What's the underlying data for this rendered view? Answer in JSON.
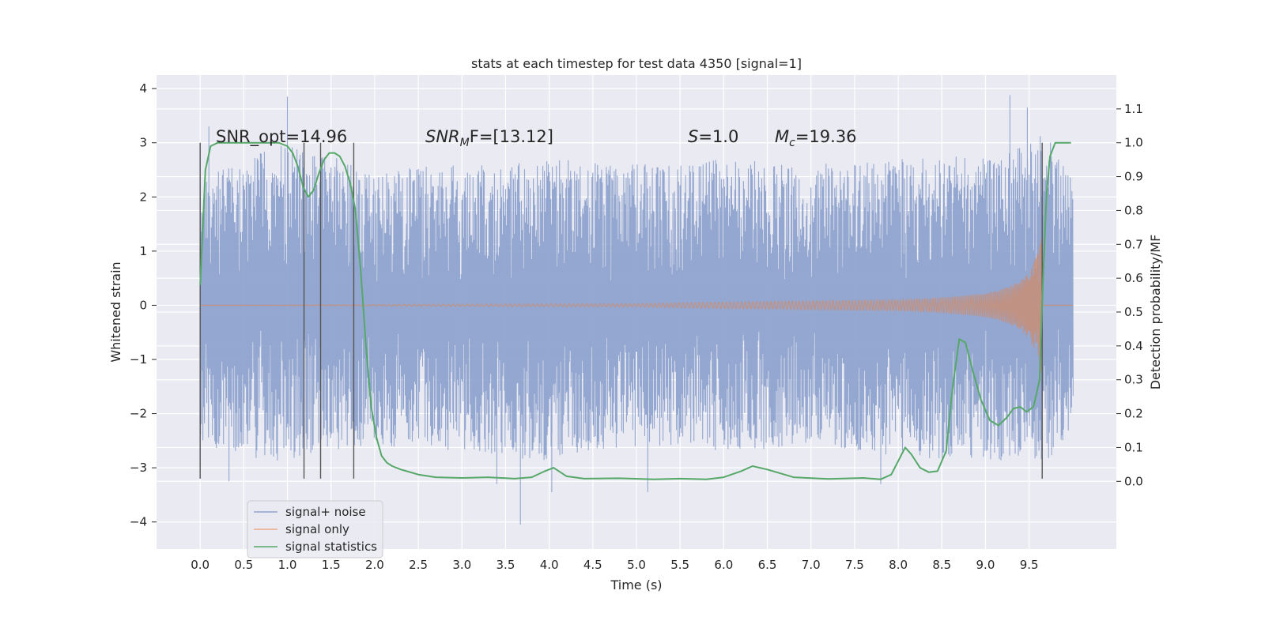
{
  "chart_data": {
    "type": "line",
    "title": "stats at each timestep for test data 4350 [signal=1]",
    "xlabel": "Time (s)",
    "ylabel_left": "Whitened strain",
    "ylabel_right": "Detection probability/MF",
    "xlim": [
      -0.5,
      10.5
    ],
    "ylim_left": [
      -4.5,
      4.25
    ],
    "ylim_right": [
      -0.2,
      1.2
    ],
    "x_ticks": [
      "0.0",
      "0.5",
      "1.0",
      "1.5",
      "2.0",
      "2.5",
      "3.0",
      "3.5",
      "4.0",
      "4.5",
      "5.0",
      "5.5",
      "6.0",
      "6.5",
      "7.0",
      "7.5",
      "8.0",
      "8.5",
      "9.0",
      "9.5"
    ],
    "y_ticks_left": [
      "4",
      "3",
      "2",
      "1",
      "0",
      "−1",
      "−2",
      "−3",
      "−4"
    ],
    "y_ticks_right": [
      "1.1",
      "1.0",
      "0.9",
      "0.8",
      "0.7",
      "0.6",
      "0.5",
      "0.4",
      "0.3",
      "0.2",
      "0.1",
      "0.0"
    ],
    "grid": true,
    "legend_position": "lower-left",
    "annotations": {
      "snr_opt": "SNR_opt=14.96",
      "snr_mf_prefix": "SNR",
      "snr_mf_sub": "M",
      "snr_mf_rest": "F=[13.12]",
      "s_prefix": "S",
      "s_rest": "=1.0",
      "mc_prefix": "M",
      "mc_sub": "c",
      "mc_rest": "=19.36"
    },
    "vertical_markers": [
      0.0,
      1.19,
      1.38,
      1.76,
      9.65
    ],
    "series": [
      {
        "name": "signal+ noise",
        "color": "#8fa3cd",
        "axis": "left",
        "envelope": {
          "x": [
            0.0,
            0.5,
            1.0,
            1.5,
            2.0,
            3.0,
            4.0,
            5.0,
            6.0,
            7.0,
            8.0,
            9.0,
            9.5,
            9.65,
            10.0
          ],
          "upper": [
            2.3,
            2.7,
            3.0,
            2.8,
            2.5,
            2.6,
            2.7,
            2.6,
            2.7,
            2.6,
            2.7,
            2.8,
            3.0,
            3.3,
            2.5
          ],
          "lower": [
            -2.6,
            -2.8,
            -2.9,
            -2.7,
            -2.6,
            -2.7,
            -2.9,
            -2.6,
            -2.7,
            -2.6,
            -2.8,
            -2.9,
            -2.8,
            -3.0,
            -2.3
          ]
        },
        "peaks": [
          [
            1.0,
            3.85
          ],
          [
            0.1,
            3.3
          ],
          [
            9.28,
            3.88
          ],
          [
            9.48,
            3.65
          ],
          [
            0.33,
            -3.25
          ],
          [
            3.67,
            -4.05
          ],
          [
            5.13,
            -3.45
          ],
          [
            3.4,
            -3.3
          ],
          [
            4.03,
            -3.45
          ],
          [
            7.8,
            -3.3
          ]
        ]
      },
      {
        "name": "signal only",
        "color": "#dd8452",
        "axis": "left",
        "envelope": {
          "x": [
            0.0,
            5.0,
            6.0,
            7.0,
            8.0,
            8.5,
            9.0,
            9.2,
            9.4,
            9.5,
            9.6,
            9.65,
            9.66,
            10.0
          ],
          "amplitude": [
            0.0,
            0.03,
            0.06,
            0.08,
            0.1,
            0.14,
            0.22,
            0.3,
            0.45,
            0.62,
            0.98,
            1.35,
            0.0,
            0.0
          ]
        }
      },
      {
        "name": "signal statistics",
        "color": "#55a868",
        "axis": "right",
        "x": [
          0.0,
          0.06,
          0.12,
          0.2,
          0.3,
          0.4,
          0.5,
          0.6,
          0.7,
          0.8,
          0.9,
          1.0,
          1.06,
          1.12,
          1.18,
          1.24,
          1.3,
          1.36,
          1.42,
          1.48,
          1.54,
          1.6,
          1.66,
          1.72,
          1.78,
          1.84,
          1.9,
          1.96,
          2.02,
          2.08,
          2.14,
          2.2,
          2.3,
          2.5,
          2.7,
          3.0,
          3.3,
          3.6,
          3.8,
          3.95,
          4.05,
          4.2,
          4.4,
          4.8,
          5.2,
          5.5,
          5.8,
          6.0,
          6.2,
          6.33,
          6.5,
          6.8,
          7.2,
          7.6,
          7.8,
          7.92,
          8.0,
          8.08,
          8.15,
          8.25,
          8.35,
          8.45,
          8.55,
          8.62,
          8.7,
          8.77,
          8.85,
          8.95,
          9.05,
          9.15,
          9.25,
          9.32,
          9.4,
          9.47,
          9.55,
          9.62,
          9.66,
          9.7,
          9.74,
          9.8,
          9.9,
          9.98
        ],
        "values": [
          0.58,
          0.92,
          0.99,
          1.0,
          1.0,
          1.0,
          1.0,
          1.0,
          1.0,
          1.0,
          1.0,
          0.99,
          0.97,
          0.93,
          0.87,
          0.84,
          0.86,
          0.91,
          0.95,
          0.97,
          0.97,
          0.96,
          0.93,
          0.88,
          0.8,
          0.62,
          0.4,
          0.22,
          0.13,
          0.075,
          0.055,
          0.045,
          0.035,
          0.02,
          0.012,
          0.01,
          0.012,
          0.008,
          0.012,
          0.03,
          0.04,
          0.015,
          0.008,
          0.009,
          0.006,
          0.008,
          0.006,
          0.012,
          0.03,
          0.045,
          0.035,
          0.012,
          0.007,
          0.01,
          0.006,
          0.02,
          0.06,
          0.1,
          0.08,
          0.04,
          0.027,
          0.03,
          0.09,
          0.27,
          0.42,
          0.41,
          0.33,
          0.24,
          0.18,
          0.165,
          0.19,
          0.215,
          0.22,
          0.205,
          0.22,
          0.3,
          0.6,
          0.85,
          0.96,
          1.0,
          1.0,
          1.0
        ]
      }
    ]
  }
}
